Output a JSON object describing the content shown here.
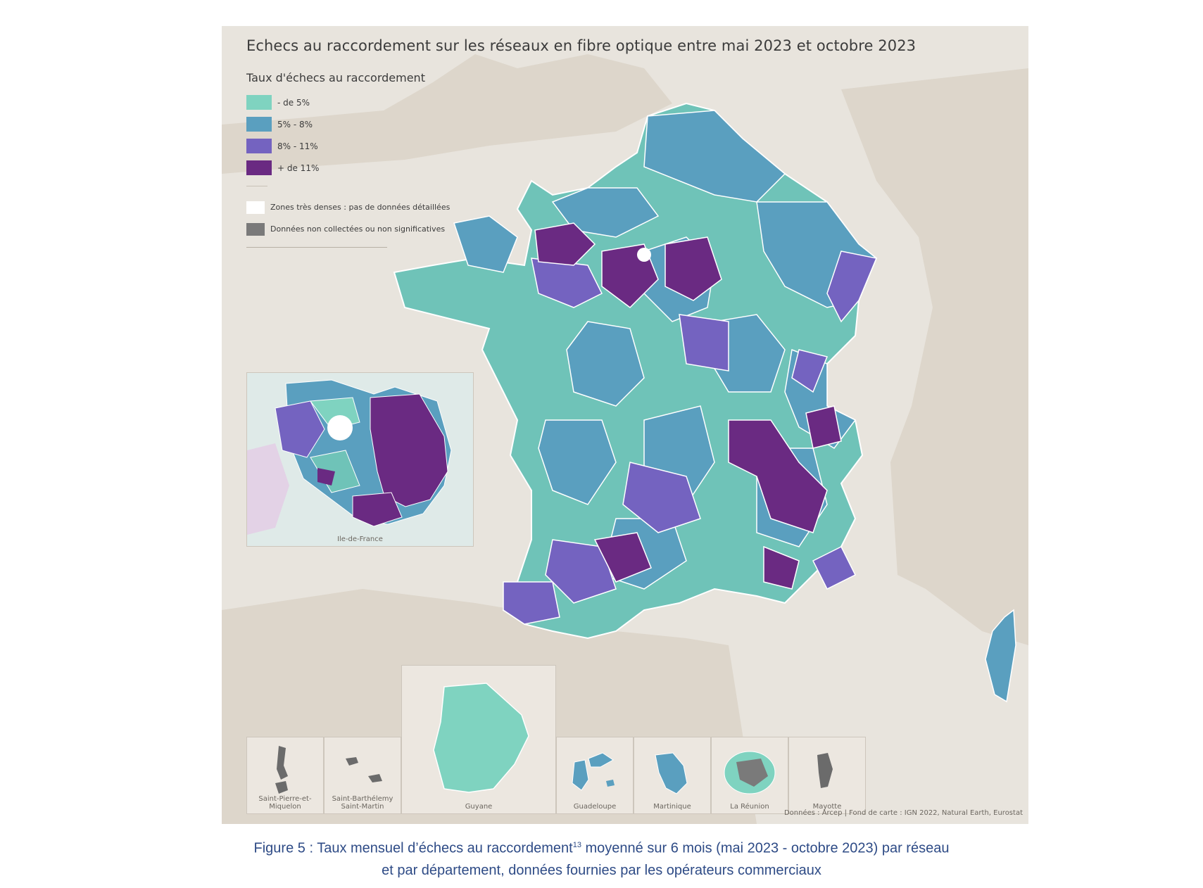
{
  "map": {
    "title": "Echecs au raccordement sur les réseaux en fibre optique entre mai 2023 et octobre 2023",
    "legend": {
      "title": "Taux d'échecs au raccordement",
      "items": [
        {
          "label": "- de 5%",
          "color": "#7fd3c0"
        },
        {
          "label": "5% - 8%",
          "color": "#5a9fbf"
        },
        {
          "label": "8% - 11%",
          "color": "#7463c0"
        },
        {
          "label": "+ de 11%",
          "color": "#6a2a82"
        }
      ],
      "extras": [
        {
          "label": "Zones très denses : pas de données détaillées",
          "color": "#ffffff"
        },
        {
          "label": "Données non collectées ou non significatives",
          "color": "#7a7a7a"
        }
      ]
    },
    "insets": {
      "idf": "Ile-de-France",
      "spm": "Saint-Pierre-et-Miquelon",
      "sbsm": "Saint-Barthélemy Saint-Martin",
      "guyane": "Guyane",
      "guadeloupe": "Guadeloupe",
      "martinique": "Martinique",
      "reunion": "La Réunion",
      "mayotte": "Mayotte"
    },
    "source": "Données : Arcep | Fond de carte : IGN 2022, Natural Earth, Eurostat"
  },
  "caption": {
    "line1_before": "Figure 5 : Taux mensuel d’échecs au raccordement",
    "footnote": "13",
    "line1_after": " moyenné sur 6 mois (mai 2023 - octobre 2023) par réseau",
    "line2": "et par département, données fournies par les opérateurs commerciaux"
  }
}
